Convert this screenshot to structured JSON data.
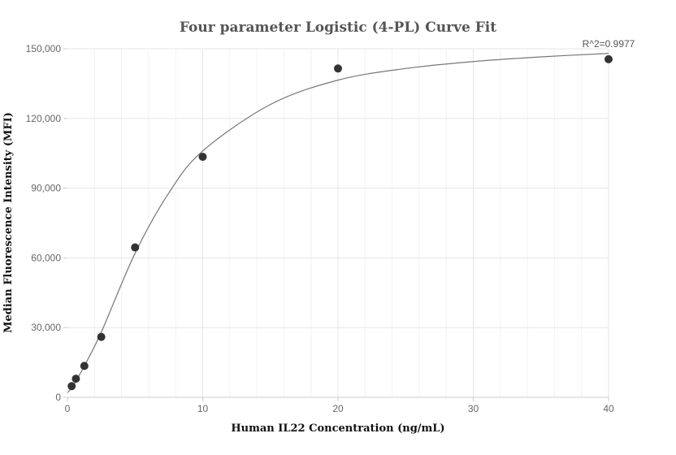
{
  "chart_data": {
    "type": "scatter",
    "title": "Four parameter Logistic (4-PL) Curve Fit",
    "xlabel": "Human IL22 Concentration (ng/mL)",
    "ylabel": "Median Fluorescence Intensity (MFI)",
    "xlim": [
      0,
      40
    ],
    "ylim": [
      0,
      150000
    ],
    "x_ticks": [
      0,
      10,
      20,
      30,
      40
    ],
    "x_tick_labels": [
      "0",
      "10",
      "20",
      "30",
      "40"
    ],
    "y_ticks": [
      0,
      30000,
      60000,
      90000,
      120000,
      150000
    ],
    "y_tick_labels": [
      "0",
      "30,000",
      "60,000",
      "90,000",
      "120,000",
      "150,000"
    ],
    "grid": true,
    "annotation": "R^2=0.9977",
    "points": [
      {
        "x": 0.3125,
        "y": 4800
      },
      {
        "x": 0.625,
        "y": 8000
      },
      {
        "x": 1.25,
        "y": 13500
      },
      {
        "x": 2.5,
        "y": 26000
      },
      {
        "x": 5,
        "y": 64500
      },
      {
        "x": 10,
        "y": 103500
      },
      {
        "x": 20,
        "y": 141500
      },
      {
        "x": 40,
        "y": 145500
      }
    ],
    "fit_curve": {
      "x": [
        0,
        0.3125,
        0.625,
        1.25,
        2.5,
        5,
        7.5,
        10,
        15,
        20,
        25,
        30,
        35,
        40
      ],
      "y": [
        2000,
        4000,
        7000,
        13500,
        28000,
        62000,
        88000,
        106000,
        126000,
        136500,
        141500,
        144500,
        146500,
        148000
      ]
    },
    "colors": {
      "points": "#333333",
      "curve": "#777777",
      "grid": "#e6e6e6",
      "minor_grid": "#f2f2f2",
      "axis": "#cccccc"
    }
  }
}
